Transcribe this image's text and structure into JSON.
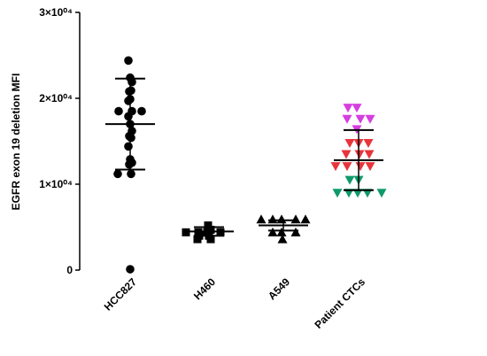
{
  "chart_data": {
    "type": "scatter",
    "ylabel": "EGFR exon 19 deletion MFI",
    "ylim": [
      0,
      30000
    ],
    "yticks": [
      0,
      {
        "value": 10000,
        "label": "1×10⁰⁴"
      },
      {
        "value": 20000,
        "label": "2×10⁰⁴"
      },
      {
        "value": 30000,
        "label": "3×10⁰⁴"
      }
    ],
    "categories": [
      "HCC827",
      "H460",
      "A549",
      "Patient CTCs"
    ],
    "groups": [
      {
        "marker": "circle",
        "color": "#000000",
        "values": [
          24400,
          22400,
          21900,
          20800,
          20900,
          19700,
          19900,
          18500,
          18500,
          18500,
          17900,
          17000,
          16200,
          15600,
          15400,
          14400,
          12900,
          12500,
          12300,
          11200,
          11200,
          100
        ],
        "mean": 17000,
        "sd": 5300
      },
      {
        "marker": "square",
        "color": "#000000",
        "values": [
          4400,
          4400,
          4700,
          5200,
          4400,
          4400,
          4000,
          3600,
          3600,
          4000
        ],
        "mean": 4500,
        "sd": 500
      },
      {
        "marker": "triangle-up",
        "color": "#000000",
        "values": [
          5900,
          5900,
          5900,
          5900,
          5900,
          4400,
          4400,
          4400,
          3600
        ],
        "mean": 5200,
        "sd": 600
      },
      {
        "marker": "triangle-down",
        "values": [
          18900,
          18900,
          17600,
          17600,
          17600,
          16400,
          14800,
          14800,
          14800,
          13500,
          13500,
          13500,
          12100,
          12100,
          12100,
          12100,
          10500,
          10500,
          9000,
          9000,
          9000,
          9000,
          9000
        ],
        "point_colors": [
          "#d63ee0",
          "#d63ee0",
          "#d63ee0",
          "#d63ee0",
          "#d63ee0",
          "#d63ee0",
          "#e8343a",
          "#e8343a",
          "#e8343a",
          "#e8343a",
          "#e8343a",
          "#e8343a",
          "#e8343a",
          "#e8343a",
          "#e8343a",
          "#e8343a",
          "#0e9a6a",
          "#0e9a6a",
          "#0e9a6a",
          "#0e9a6a",
          "#0e9a6a",
          "#0e9a6a",
          "#0e9a6a"
        ],
        "mean": 12800,
        "sd": 3500
      }
    ]
  }
}
